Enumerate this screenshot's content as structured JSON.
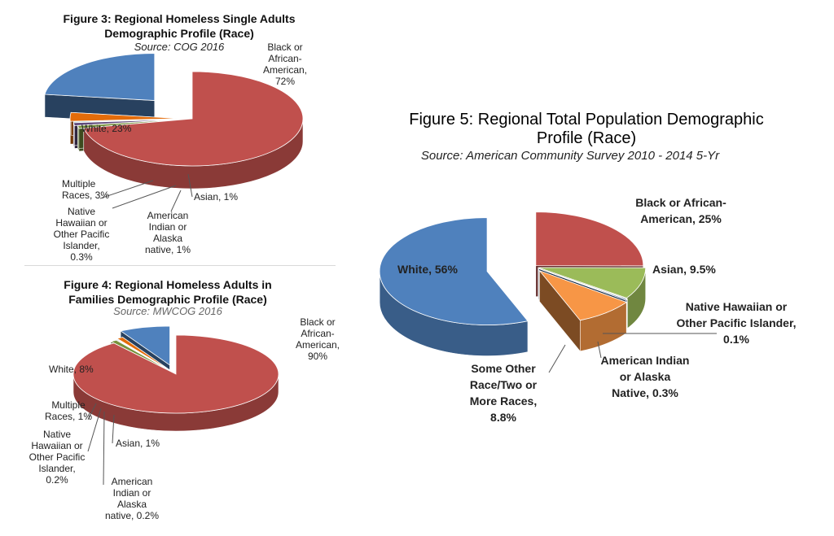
{
  "chart_data": [
    {
      "type": "pie",
      "title": "Figure 3: Regional Homeless Single Adults Demographic Profile (Race)",
      "subtitle": "Source: COG 2016",
      "slices": [
        {
          "name": "Black or African-American",
          "value": 72,
          "label": "Black or\nAfrican-\nAmerican,\n72%",
          "color": "#c0504d"
        },
        {
          "name": "Asian",
          "value": 1,
          "label": "Asian, 1%",
          "color": "#77933c"
        },
        {
          "name": "American Indian or Alaska native",
          "value": 1,
          "label": "American\nIndian or\nAlaska\nnative, 1%",
          "color": "#604a7b"
        },
        {
          "name": "Native Hawaiian or Other Pacific Islander",
          "value": 0.3,
          "label": "Native\nHawaiian or\nOther Pacific\nIslander,\n0.3%",
          "color": "#31859c"
        },
        {
          "name": "Multiple Races",
          "value": 3,
          "label": "Multiple\nRaces, 3%",
          "color": "#e46c0a"
        },
        {
          "name": "White",
          "value": 23,
          "label": "White, 23%",
          "color": "#4f81bd"
        }
      ]
    },
    {
      "type": "pie",
      "title": "Figure 4: Regional Homeless Adults in Families Demographic Profile (Race)",
      "subtitle": "Source: MWCOG 2016",
      "slices": [
        {
          "name": "Black or African-American",
          "value": 90,
          "label": "Black or\nAfrican-\nAmerican,\n90%",
          "color": "#c0504d"
        },
        {
          "name": "Asian",
          "value": 1,
          "label": "Asian, 1%",
          "color": "#77933c"
        },
        {
          "name": "American Indian or Alaska native",
          "value": 0.2,
          "label": "American\nIndian or\nAlaska\nnative, 0.2%",
          "color": "#604a7b"
        },
        {
          "name": "Native Hawaiian or Other Pacific Islander",
          "value": 0.2,
          "label": "Native\nHawaiian or\nOther Pacific\nIslander,\n0.2%",
          "color": "#31859c"
        },
        {
          "name": "Multiple Races",
          "value": 1,
          "label": "Multiple\nRaces, 1%",
          "color": "#e46c0a"
        },
        {
          "name": "White",
          "value": 8,
          "label": "White, 8%",
          "color": "#4f81bd"
        }
      ]
    },
    {
      "type": "pie",
      "title": "Figure 5: Regional Total Population Demographic Profile (Race)",
      "subtitle": "Source: American Community Survey 2010 - 2014 5-Yr",
      "slices": [
        {
          "name": "Black or African-American",
          "value": 25,
          "label": "Black or African-\nAmerican, 25%",
          "color": "#c0504d"
        },
        {
          "name": "Asian",
          "value": 9.5,
          "label": "Asian, 9.5%",
          "color": "#9bbb59"
        },
        {
          "name": "Native Hawaiian or Other Pacific Islander",
          "value": 0.1,
          "label": "Native Hawaiian or\nOther Pacific Islander,\n0.1%",
          "color": "#4bacc6"
        },
        {
          "name": "American Indian or Alaska Native",
          "value": 0.3,
          "label": "American Indian\nor Alaska\nNative, 0.3%",
          "color": "#1f497d"
        },
        {
          "name": "Some Other Race/Two or More Races",
          "value": 8.8,
          "label": "Some Other\nRace/Two or\nMore Races,\n8.8%",
          "color": "#f79646"
        },
        {
          "name": "White",
          "value": 56,
          "label": "White, 56%",
          "color": "#4f81bd"
        }
      ]
    }
  ]
}
